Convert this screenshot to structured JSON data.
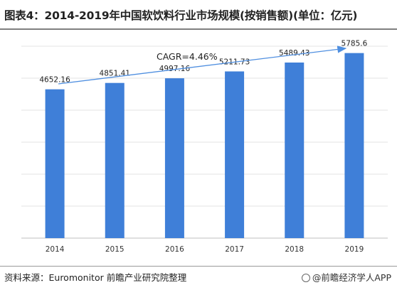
{
  "title": "图表4：2014-2019年中国软饮料行业市场规模(按销售额)(单位：亿元)",
  "source": "资料来源：Euromonitor 前瞻产业研究院整理",
  "brand": "@前瞻经济学人APP",
  "chart_data": {
    "type": "bar",
    "categories": [
      "2014",
      "2015",
      "2016",
      "2017",
      "2018",
      "2019"
    ],
    "values": [
      4652.16,
      4851.41,
      4997.16,
      5211.73,
      5489.43,
      5785.6
    ],
    "value_labels": [
      "4652.16",
      "4851.41",
      "4997.16",
      "5211.73",
      "5489.43",
      "5785.6"
    ],
    "annotation": "CAGR=4.46%",
    "ylim": [
      0,
      6000
    ],
    "bar_color": "#3f7fd8",
    "grid": true,
    "legend": "none"
  }
}
